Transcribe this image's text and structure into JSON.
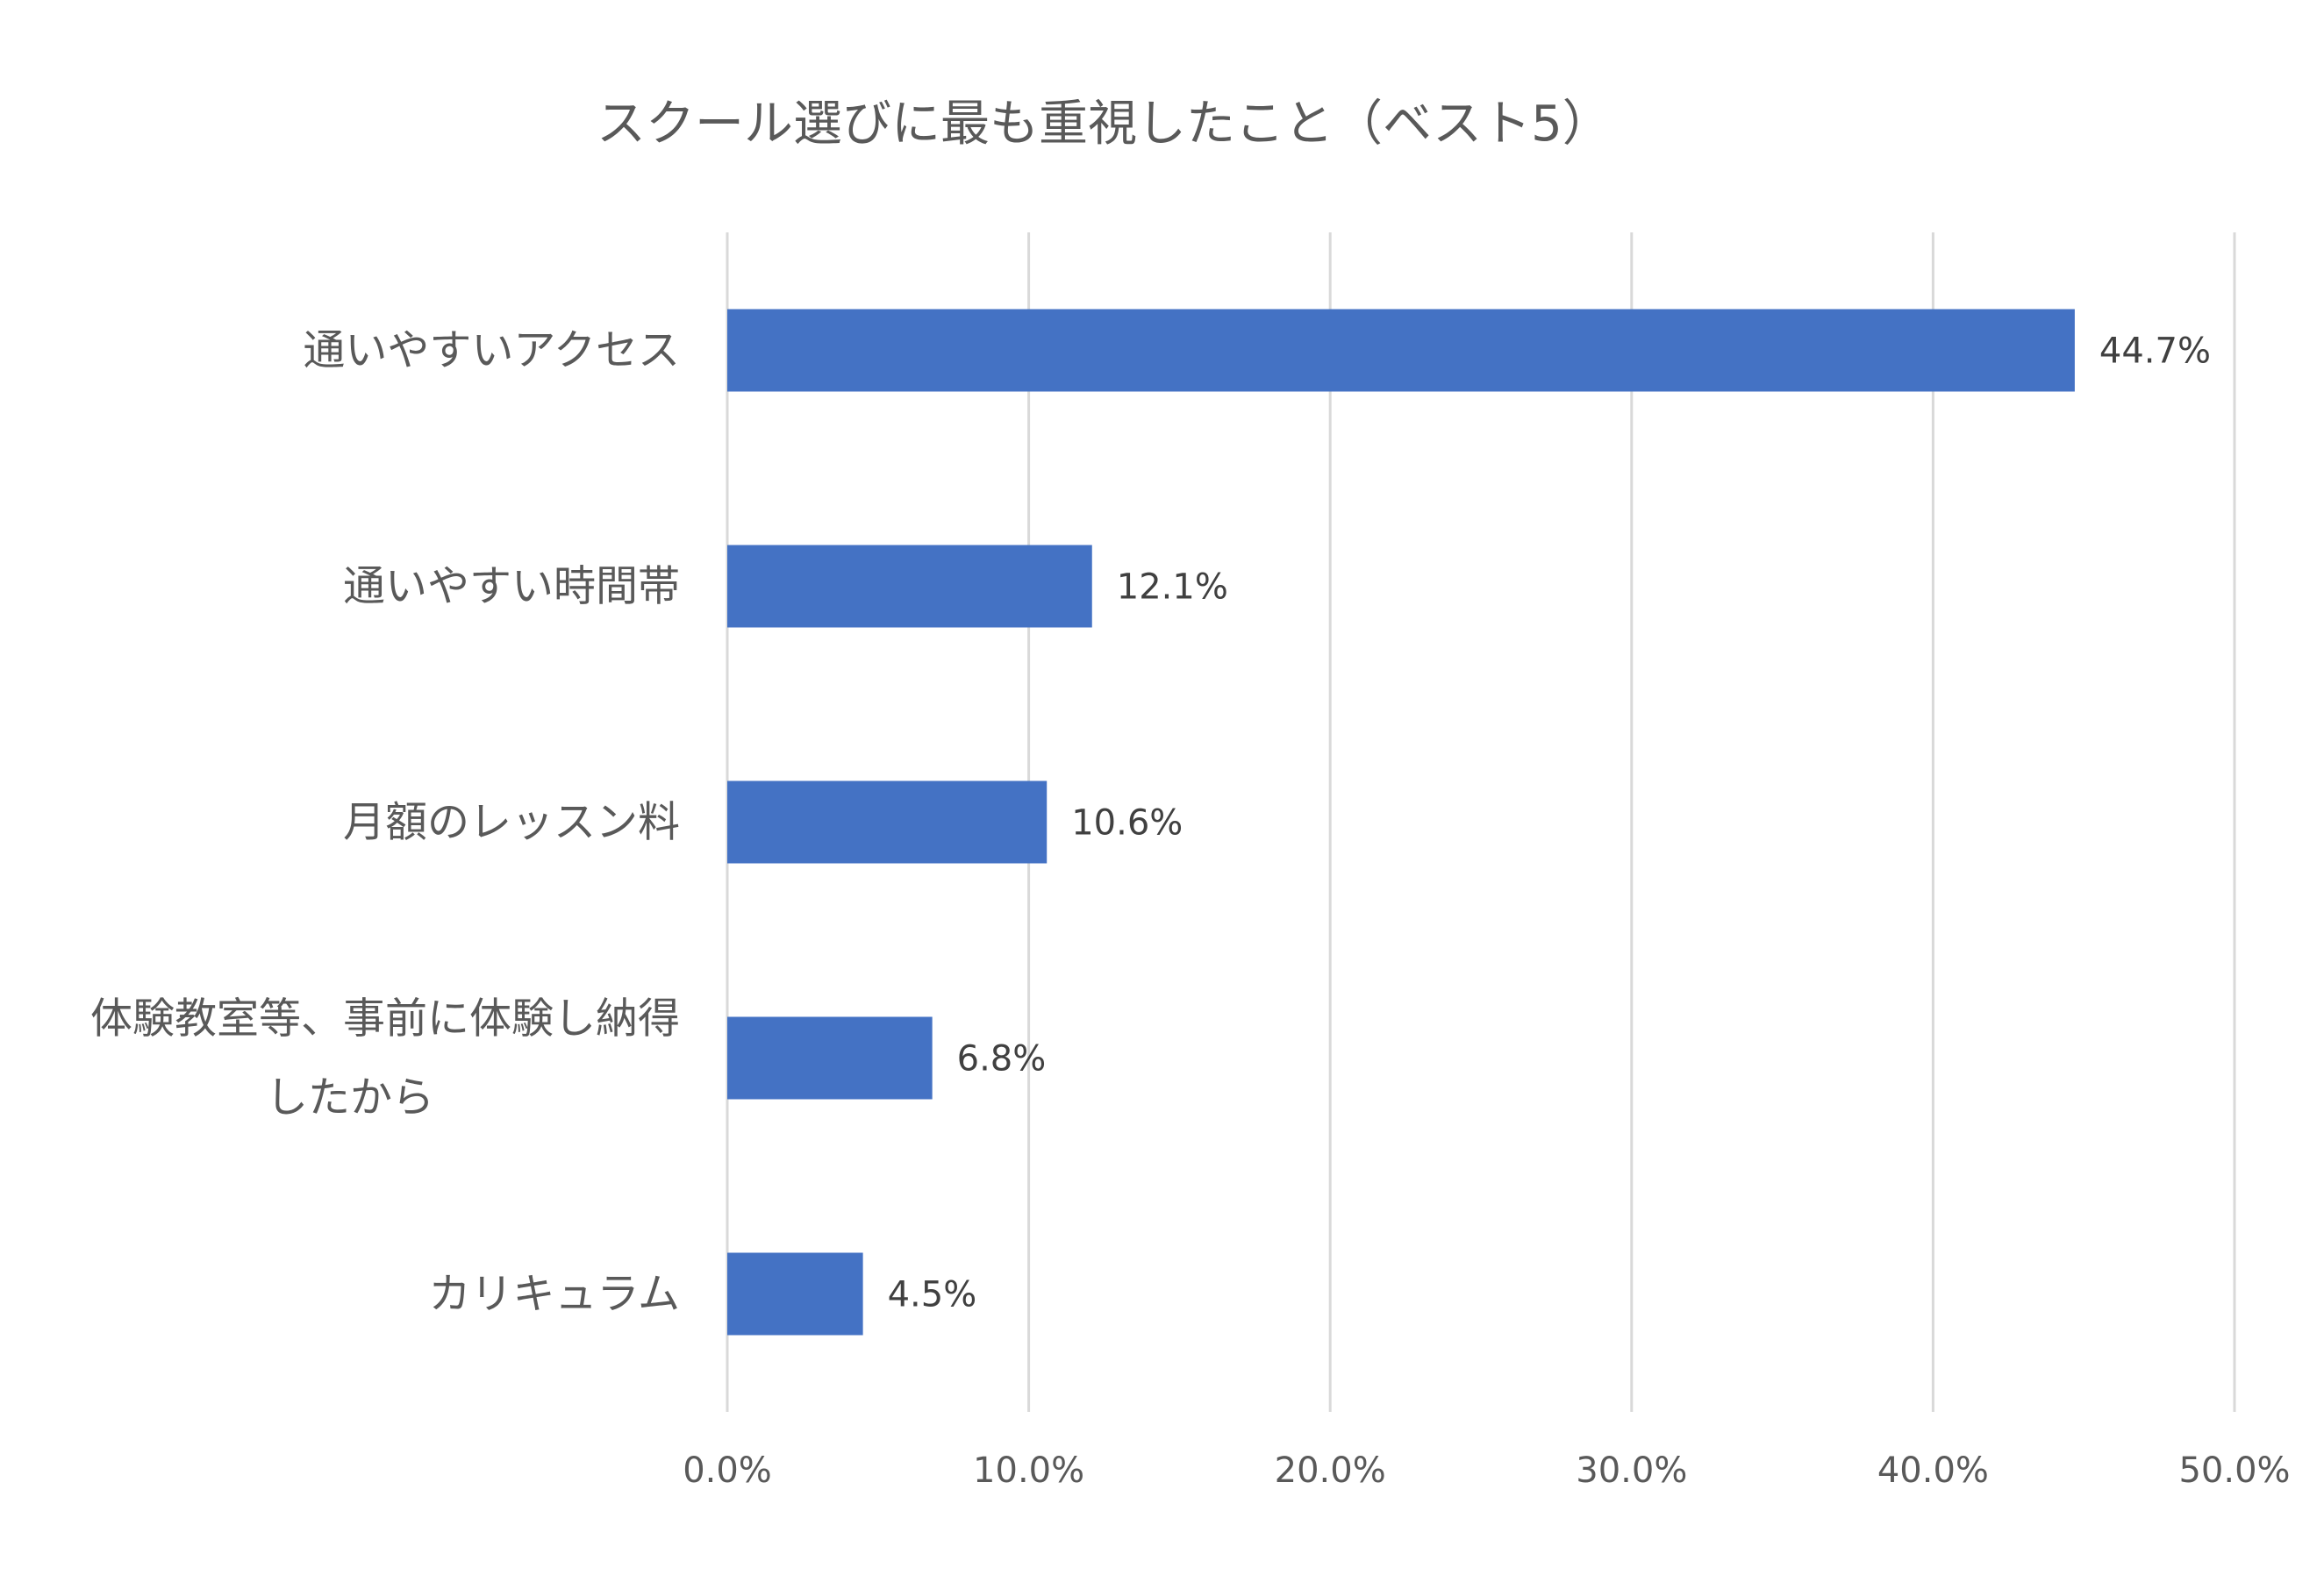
{
  "chart_data": {
    "type": "bar",
    "orientation": "horizontal",
    "title": "スクール選びに最も重視したこと（ベスト5）",
    "categories": [
      "通いやすいアクセス",
      "通いやすい時間帯",
      "月額のレッスン料",
      "体験教室等、事前に体験し納得したから",
      "カリキュラム"
    ],
    "category_label_lines": [
      [
        "通いやすいアクセス"
      ],
      [
        "通いやすい時間帯"
      ],
      [
        "月額のレッスン料"
      ],
      [
        "体験教室等、事前に体験し納得",
        "したから"
      ],
      [
        "カリキュラム"
      ]
    ],
    "values": [
      44.7,
      12.1,
      10.6,
      6.8,
      4.5
    ],
    "data_labels": [
      "44.7%",
      "12.1%",
      "10.6%",
      "6.8%",
      "4.5%"
    ],
    "xlim": [
      0,
      50
    ],
    "x_ticks": [
      0,
      10,
      20,
      30,
      40,
      50
    ],
    "x_tick_labels": [
      "0.0%",
      "10.0%",
      "20.0%",
      "30.0%",
      "40.0%",
      "50.0%"
    ],
    "grid": true,
    "legend": "none",
    "bar_color": "#4472C4",
    "grid_color": "#D9D9D9",
    "text_color": "#595959"
  }
}
